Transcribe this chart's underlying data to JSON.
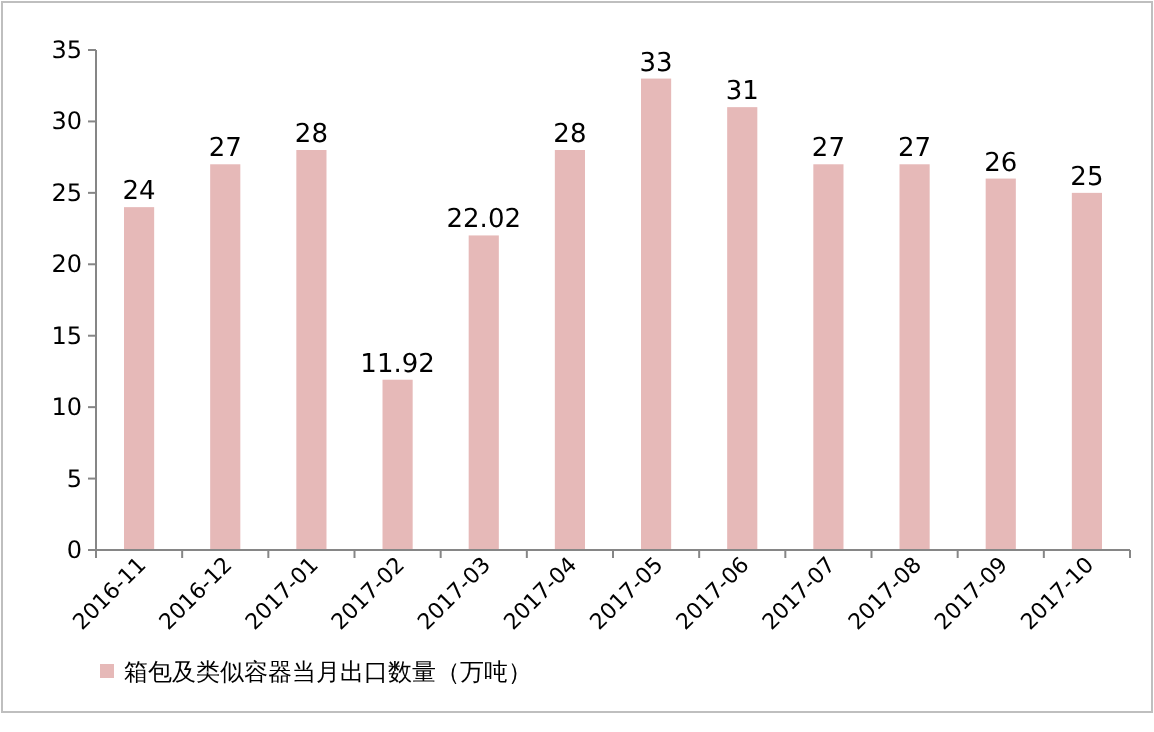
{
  "chart_data": {
    "type": "bar",
    "categories": [
      "2016-11",
      "2016-12",
      "2017-01",
      "2017-02",
      "2017-03",
      "2017-04",
      "2017-05",
      "2017-06",
      "2017-07",
      "2017-08",
      "2017-09",
      "2017-10"
    ],
    "series": [
      {
        "name": "箱包及类似容器当月出口数量（万吨）",
        "color": "#e6b9b8",
        "values": [
          24,
          27,
          28,
          11.92,
          22.02,
          28,
          33,
          31,
          27,
          27,
          26,
          25
        ]
      }
    ],
    "ylim": [
      0,
      35
    ],
    "yticks": [
      0,
      5,
      10,
      15,
      20,
      25,
      30,
      35
    ],
    "data_labels": true,
    "grid": false,
    "legend": "bottom"
  }
}
